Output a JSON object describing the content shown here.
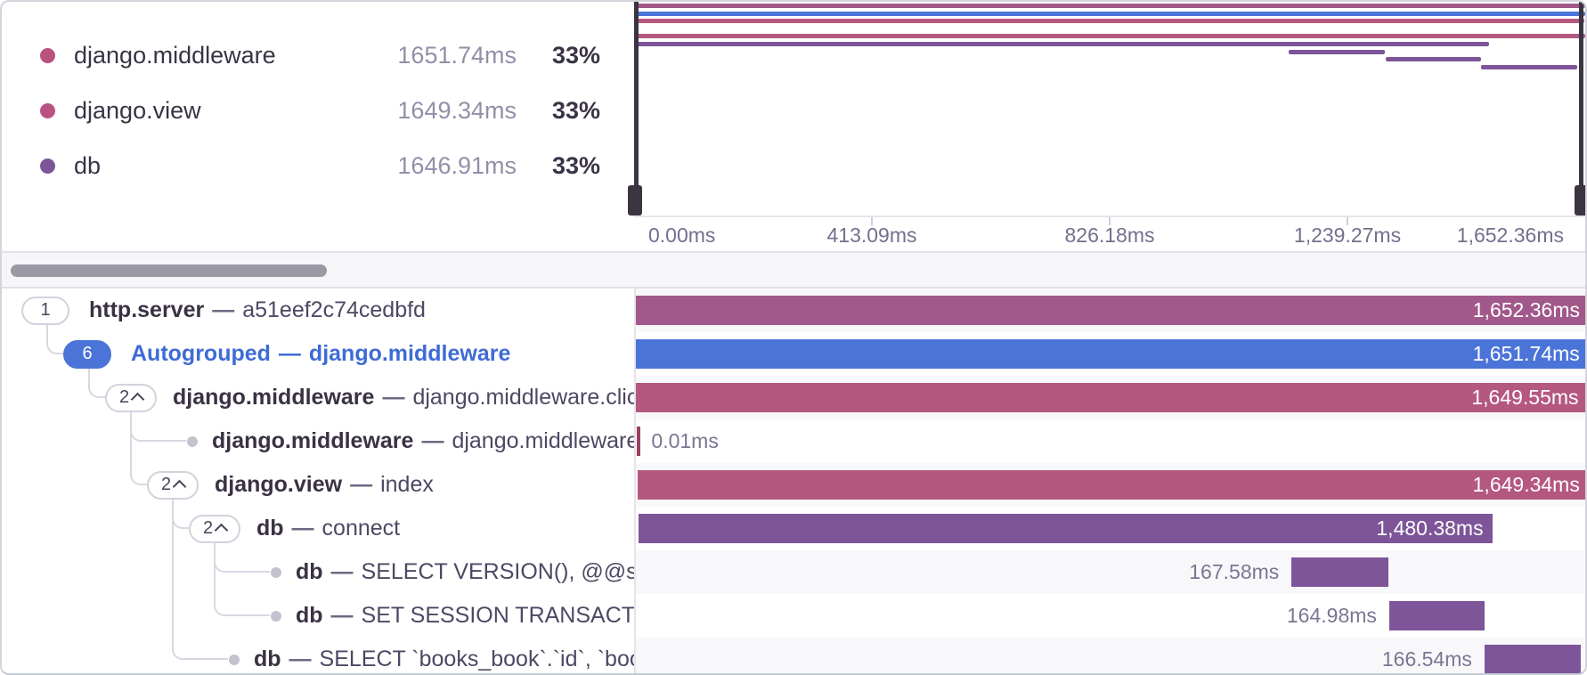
{
  "trace": {
    "total_ms": 1652.36
  },
  "legend": {
    "items": [
      {
        "name": "django.middleware",
        "value": "1651.74ms",
        "percent": "33%",
        "color": "#b95282"
      },
      {
        "name": "django.view",
        "value": "1649.34ms",
        "percent": "33%",
        "color": "#b95282"
      },
      {
        "name": "db",
        "value": "1646.91ms",
        "percent": "33%",
        "color": "#7e5599"
      }
    ]
  },
  "minimap": {
    "axis_ticks": [
      {
        "label": "0.00ms",
        "pct": 0,
        "align": "left"
      },
      {
        "label": "413.09ms",
        "pct": 25,
        "align": "center"
      },
      {
        "label": "826.18ms",
        "pct": 50,
        "align": "center"
      },
      {
        "label": "1,239.27ms",
        "pct": 75,
        "align": "center"
      },
      {
        "label": "1,652.36ms",
        "pct": 100,
        "align": "right"
      }
    ]
  },
  "spans": [
    {
      "badge": "1",
      "chevron": false,
      "badge_variant": "default",
      "dot": false,
      "depth": 0,
      "parent": null,
      "name": "http.server",
      "sep": "—",
      "desc": "a51eef2c74cedbfd",
      "autogrouped": false,
      "bar": {
        "start_ms": 0,
        "duration_ms": 1652.36,
        "color": "#a1588a",
        "label": "1,652.36ms",
        "label_pos": "inside"
      }
    },
    {
      "badge": "6",
      "chevron": false,
      "badge_variant": "blue",
      "dot": false,
      "depth": 1,
      "parent": 0,
      "name": "Autogrouped",
      "sep": "—",
      "desc": "django.middleware",
      "autogrouped": true,
      "bar": {
        "start_ms": 0.3,
        "duration_ms": 1651.74,
        "color": "#4b74d8",
        "label": "1,651.74ms",
        "label_pos": "inside"
      }
    },
    {
      "badge": "2",
      "chevron": true,
      "badge_variant": "default",
      "dot": false,
      "depth": 2,
      "parent": 1,
      "name": "django.middleware",
      "sep": "—",
      "desc": "django.middleware.clickj",
      "autogrouped": false,
      "bar": {
        "start_ms": 0.6,
        "duration_ms": 1649.55,
        "color": "#b45880",
        "label": "1,649.55ms",
        "label_pos": "inside"
      }
    },
    {
      "badge": null,
      "chevron": false,
      "badge_variant": "default",
      "dot": true,
      "depth": 3,
      "parent": 2,
      "name": "django.middleware",
      "sep": "—",
      "desc": "django.middleware.c",
      "autogrouped": false,
      "bar": {
        "start_ms": 2.2,
        "duration_ms": 0.01,
        "color": "#9c3f60",
        "label": "0.01ms",
        "label_pos": "tick-right"
      }
    },
    {
      "badge": "2",
      "chevron": true,
      "badge_variant": "default",
      "dot": false,
      "depth": 3,
      "parent": 2,
      "name": "django.view",
      "sep": "—",
      "desc": "index",
      "autogrouped": false,
      "bar": {
        "start_ms": 2.8,
        "duration_ms": 1649.34,
        "color": "#b45880",
        "label": "1,649.34ms",
        "label_pos": "inside"
      }
    },
    {
      "badge": "2",
      "chevron": true,
      "badge_variant": "default",
      "dot": false,
      "depth": 4,
      "parent": 4,
      "name": "db",
      "sep": "—",
      "desc": "connect",
      "autogrouped": false,
      "bar": {
        "start_ms": 4.6,
        "duration_ms": 1480.38,
        "color": "#7e5599",
        "label": "1,480.38ms",
        "label_pos": "inside"
      }
    },
    {
      "badge": null,
      "chevron": false,
      "badge_variant": "default",
      "dot": true,
      "depth": 5,
      "parent": 5,
      "name": "db",
      "sep": "—",
      "desc": "SELECT VERSION(), @@sql_m",
      "autogrouped": false,
      "bar": {
        "start_ms": 1137.0,
        "duration_ms": 167.58,
        "color": "#7e5599",
        "label": "167.58ms",
        "label_pos": "left"
      }
    },
    {
      "badge": null,
      "chevron": false,
      "badge_variant": "default",
      "dot": true,
      "depth": 5,
      "parent": 5,
      "name": "db",
      "sep": "—",
      "desc": "SET SESSION TRANSACTION",
      "autogrouped": false,
      "bar": {
        "start_ms": 1306.3,
        "duration_ms": 164.98,
        "color": "#7e5599",
        "label": "164.98ms",
        "label_pos": "left"
      }
    },
    {
      "badge": null,
      "chevron": false,
      "badge_variant": "default",
      "dot": true,
      "depth": 4,
      "parent": 4,
      "name": "db",
      "sep": "—",
      "desc": "SELECT `books_book`.`id`, `books",
      "autogrouped": false,
      "bar": {
        "start_ms": 1471.5,
        "duration_ms": 166.54,
        "color": "#7e5599",
        "label": "166.54ms",
        "label_pos": "left"
      }
    }
  ]
}
